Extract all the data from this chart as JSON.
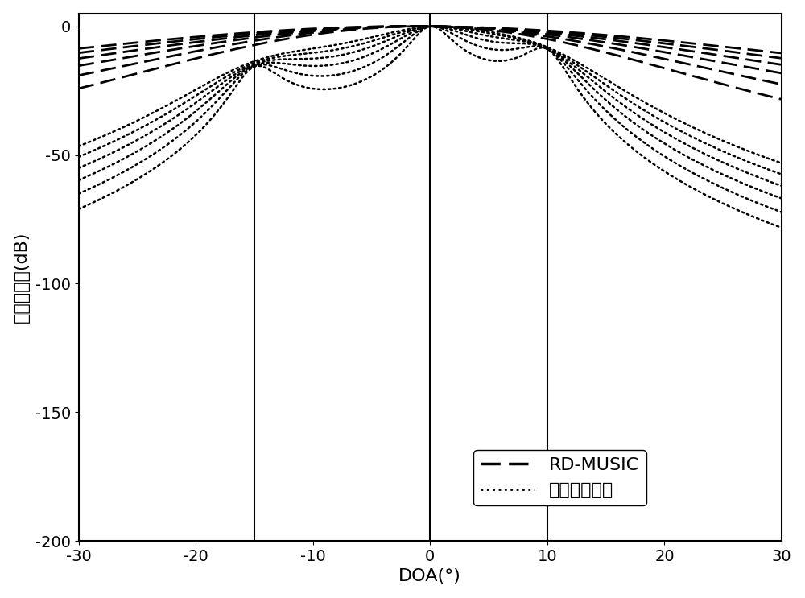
{
  "title": "",
  "xlabel": "DOA(°)",
  "ylabel": "归一化谱值(dB)",
  "xlim": [
    -30,
    30
  ],
  "ylim": [
    -200,
    5
  ],
  "yticks": [
    0,
    -50,
    -100,
    -150,
    -200
  ],
  "xticks": [
    -30,
    -20,
    -10,
    0,
    10,
    20,
    30
  ],
  "vlines": [
    -15,
    0,
    10
  ],
  "target_angles": [
    -15,
    0,
    10
  ],
  "background_color": "#ffffff",
  "line_color": "#000000",
  "legend_rd": "RD-MUSIC",
  "legend_inv": "本发明的算法",
  "fontsize_axis": 16,
  "fontsize_tick": 14,
  "fontsize_legend": 16,
  "dashed_widths": [
    0.3,
    0.38,
    0.46,
    0.54,
    0.62,
    0.7
  ],
  "dotted_widths": [
    0.03,
    0.042,
    0.056,
    0.072,
    0.09,
    0.11
  ]
}
